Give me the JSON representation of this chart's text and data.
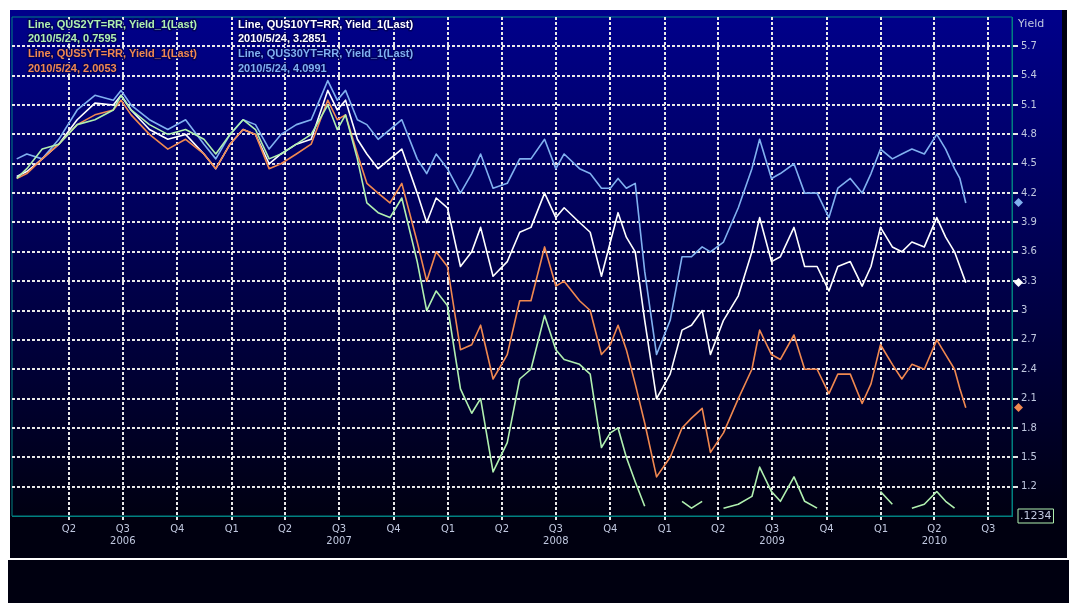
{
  "chart_data": {
    "type": "line",
    "x": [
      "2006-01-03",
      "2006-01-20",
      "2006-02-15",
      "2006-03-15",
      "2006-04-15",
      "2006-05-15",
      "2006-06-15",
      "2006-06-28",
      "2006-07-15",
      "2006-08-15",
      "2006-09-15",
      "2006-10-15",
      "2006-11-15",
      "2006-12-05",
      "2006-12-29",
      "2007-01-20",
      "2007-02-10",
      "2007-03-05",
      "2007-03-25",
      "2007-04-20",
      "2007-05-15",
      "2007-06-12",
      "2007-06-28",
      "2007-07-12",
      "2007-08-01",
      "2007-08-17",
      "2007-09-05",
      "2007-09-25",
      "2007-10-15",
      "2007-11-10",
      "2007-11-26",
      "2007-12-12",
      "2007-12-31",
      "2008-01-22",
      "2008-02-10",
      "2008-02-25",
      "2008-03-17",
      "2008-04-10",
      "2008-05-01",
      "2008-05-20",
      "2008-06-12",
      "2008-07-01",
      "2008-07-15",
      "2008-08-10",
      "2008-08-28",
      "2008-09-16",
      "2008-10-01",
      "2008-10-14",
      "2008-10-28",
      "2008-11-12",
      "2008-11-28",
      "2008-12-18",
      "2009-01-10",
      "2009-01-30",
      "2009-02-15",
      "2009-03-05",
      "2009-03-19",
      "2009-04-10",
      "2009-05-05",
      "2009-05-28",
      "2009-06-10",
      "2009-06-30",
      "2009-07-15",
      "2009-08-07",
      "2009-08-25",
      "2009-09-15",
      "2009-10-05",
      "2009-10-20",
      "2009-11-10",
      "2009-11-30",
      "2009-12-15",
      "2009-12-31",
      "2010-01-20",
      "2010-02-05",
      "2010-02-22",
      "2010-03-15",
      "2010-04-05",
      "2010-04-20",
      "2010-05-05",
      "2010-05-14",
      "2010-05-24"
    ],
    "series": [
      {
        "name": "Line, QUS2YT=RR, Yield_1(Last)",
        "color": "#b0f0b0",
        "values": [
          4.35,
          4.45,
          4.65,
          4.7,
          4.9,
          4.95,
          5.05,
          5.2,
          5.05,
          4.9,
          4.8,
          4.85,
          4.75,
          4.6,
          4.8,
          4.95,
          4.85,
          4.55,
          4.6,
          4.7,
          4.8,
          5.1,
          4.85,
          5.0,
          4.55,
          4.1,
          4.0,
          3.95,
          4.15,
          3.5,
          3.0,
          3.2,
          3.05,
          2.2,
          1.95,
          2.1,
          1.35,
          1.65,
          2.3,
          2.4,
          2.95,
          2.6,
          2.5,
          2.45,
          2.35,
          1.6,
          1.75,
          1.8,
          1.5,
          1.25,
          1.0,
          null,
          null,
          1.05,
          0.98,
          1.05,
          null,
          0.98,
          1.02,
          1.1,
          1.4,
          1.15,
          1.05,
          1.3,
          1.05,
          0.98,
          null,
          null,
          null,
          null,
          null,
          1.15,
          1.02,
          null,
          0.98,
          1.02,
          1.15,
          1.05,
          0.98,
          null,
          null
        ]
      },
      {
        "name": "Line, QUS5YT=RR, Yield_1(Last)",
        "color": "#f08850",
        "values": [
          4.35,
          4.4,
          4.55,
          4.7,
          4.9,
          5.0,
          5.05,
          5.15,
          5.0,
          4.8,
          4.65,
          4.75,
          4.6,
          4.45,
          4.7,
          4.85,
          4.8,
          4.45,
          4.5,
          4.6,
          4.7,
          5.15,
          4.95,
          5.0,
          4.6,
          4.3,
          4.2,
          4.1,
          4.3,
          3.7,
          3.3,
          3.6,
          3.45,
          2.6,
          2.65,
          2.85,
          2.3,
          2.55,
          3.1,
          3.1,
          3.65,
          3.25,
          3.3,
          3.1,
          3.0,
          2.55,
          2.65,
          2.85,
          2.6,
          2.25,
          1.85,
          1.3,
          1.5,
          1.8,
          1.9,
          2.0,
          1.55,
          1.75,
          2.1,
          2.4,
          2.8,
          2.55,
          2.5,
          2.75,
          2.4,
          2.4,
          2.15,
          2.35,
          2.35,
          2.05,
          2.25,
          2.65,
          2.45,
          2.3,
          2.45,
          2.4,
          2.7,
          2.55,
          2.4,
          2.2,
          2.0053
        ]
      },
      {
        "name": "Line, QUS10YT=RR, Yield_1(Last)",
        "color": "#ffffff",
        "values": [
          4.37,
          4.42,
          4.55,
          4.7,
          4.95,
          5.12,
          5.1,
          5.2,
          5.05,
          4.85,
          4.75,
          4.8,
          4.6,
          4.45,
          4.7,
          4.85,
          4.8,
          4.5,
          4.6,
          4.7,
          4.75,
          5.25,
          5.05,
          5.15,
          4.75,
          4.6,
          4.45,
          4.55,
          4.65,
          4.2,
          3.9,
          4.15,
          4.05,
          3.45,
          3.6,
          3.85,
          3.35,
          3.5,
          3.8,
          3.85,
          4.2,
          3.95,
          4.05,
          3.9,
          3.8,
          3.35,
          3.7,
          4.0,
          3.75,
          3.6,
          2.9,
          2.1,
          2.35,
          2.8,
          2.85,
          3.0,
          2.55,
          2.9,
          3.15,
          3.6,
          3.95,
          3.5,
          3.55,
          3.85,
          3.45,
          3.45,
          3.2,
          3.45,
          3.5,
          3.25,
          3.45,
          3.85,
          3.65,
          3.6,
          3.7,
          3.65,
          3.95,
          3.75,
          3.6,
          3.45,
          3.2851
        ]
      },
      {
        "name": "Line, QUS30YT=RR, Yield_1(Last)",
        "color": "#80b0f0",
        "values": [
          4.55,
          4.6,
          4.55,
          4.75,
          5.05,
          5.2,
          5.15,
          5.25,
          5.1,
          4.95,
          4.85,
          4.95,
          4.7,
          4.55,
          4.8,
          4.95,
          4.9,
          4.65,
          4.8,
          4.9,
          4.95,
          5.35,
          5.15,
          5.25,
          4.95,
          4.9,
          4.75,
          4.85,
          4.95,
          4.55,
          4.4,
          4.6,
          4.45,
          4.2,
          4.4,
          4.6,
          4.25,
          4.3,
          4.55,
          4.55,
          4.75,
          4.45,
          4.6,
          4.45,
          4.4,
          4.25,
          4.25,
          4.35,
          4.25,
          4.3,
          3.4,
          2.55,
          2.9,
          3.55,
          3.55,
          3.65,
          3.6,
          3.7,
          4.05,
          4.45,
          4.75,
          4.35,
          4.4,
          4.5,
          4.2,
          4.2,
          3.95,
          4.25,
          4.35,
          4.2,
          4.4,
          4.65,
          4.55,
          4.6,
          4.65,
          4.6,
          4.8,
          4.65,
          4.45,
          4.35,
          4.0991
        ]
      }
    ],
    "annotations": [
      "2010/5/24, 0.7595",
      "2010/5/24, 2.0053",
      "2010/5/24, 3.2851",
      "2010/5/24, 4.0991",
      ".1234"
    ],
    "ylabel": "Yield",
    "xlim": [
      "2005-12-26",
      "2010-08-10"
    ],
    "xticks": [
      {
        "value": "2006-04-01",
        "label": "Q2"
      },
      {
        "value": "2006-07-01",
        "label": "Q3\n2006"
      },
      {
        "value": "2006-10-01",
        "label": "Q4"
      },
      {
        "value": "2007-01-01",
        "label": "Q1"
      },
      {
        "value": "2007-04-01",
        "label": "Q2"
      },
      {
        "value": "2007-07-01",
        "label": "Q3\n2007"
      },
      {
        "value": "2007-10-01",
        "label": "Q4"
      },
      {
        "value": "2008-01-01",
        "label": "Q1"
      },
      {
        "value": "2008-04-01",
        "label": "Q2"
      },
      {
        "value": "2008-07-01",
        "label": "Q3\n2008"
      },
      {
        "value": "2008-10-01",
        "label": "Q4"
      },
      {
        "value": "2009-01-01",
        "label": "Q1"
      },
      {
        "value": "2009-04-01",
        "label": "Q2"
      },
      {
        "value": "2009-07-01",
        "label": "Q3\n2009"
      },
      {
        "value": "2009-10-01",
        "label": "Q4"
      },
      {
        "value": "2010-01-01",
        "label": "Q1"
      },
      {
        "value": "2010-04-01",
        "label": "Q2\n2010"
      },
      {
        "value": "2010-07-01",
        "label": "Q3"
      }
    ],
    "ylim": [
      0.9,
      6.0
    ],
    "yticks": [
      1.2,
      1.5,
      1.8,
      2.1,
      2.4,
      2.7,
      3,
      3.3,
      3.6,
      3.9,
      4.2,
      4.5,
      4.8,
      5.1,
      5.4,
      5.7
    ],
    "grid": true,
    "legend": "top left",
    "line_style": "solid",
    "marker": "none"
  }
}
